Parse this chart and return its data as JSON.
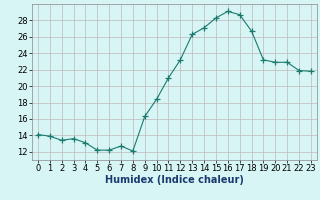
{
  "x": [
    0,
    1,
    2,
    3,
    4,
    5,
    6,
    7,
    8,
    9,
    10,
    11,
    12,
    13,
    14,
    15,
    16,
    17,
    18,
    19,
    20,
    21,
    22,
    23
  ],
  "y": [
    14.1,
    13.9,
    13.4,
    13.6,
    13.1,
    12.2,
    12.2,
    12.7,
    12.1,
    16.3,
    18.4,
    21.0,
    23.2,
    26.3,
    27.1,
    28.3,
    29.1,
    28.7,
    26.7,
    23.2,
    22.9,
    22.9,
    21.9,
    21.8
  ],
  "line_color": "#1a7a6e",
  "marker": "+",
  "marker_size": 4,
  "bg_color": "#d8f5f5",
  "grid_color": "#c0b8b8",
  "xlabel": "Humidex (Indice chaleur)",
  "ylim": [
    11,
    30
  ],
  "xlim": [
    -0.5,
    23.5
  ],
  "yticks": [
    12,
    14,
    16,
    18,
    20,
    22,
    24,
    26,
    28
  ],
  "xtick_labels": [
    "0",
    "1",
    "2",
    "3",
    "4",
    "5",
    "6",
    "7",
    "8",
    "9",
    "10",
    "11",
    "12",
    "13",
    "14",
    "15",
    "16",
    "17",
    "18",
    "19",
    "20",
    "21",
    "22",
    "23"
  ],
  "font_size": 6,
  "xlabel_color": "#1a3a6e",
  "spine_color": "#888888"
}
